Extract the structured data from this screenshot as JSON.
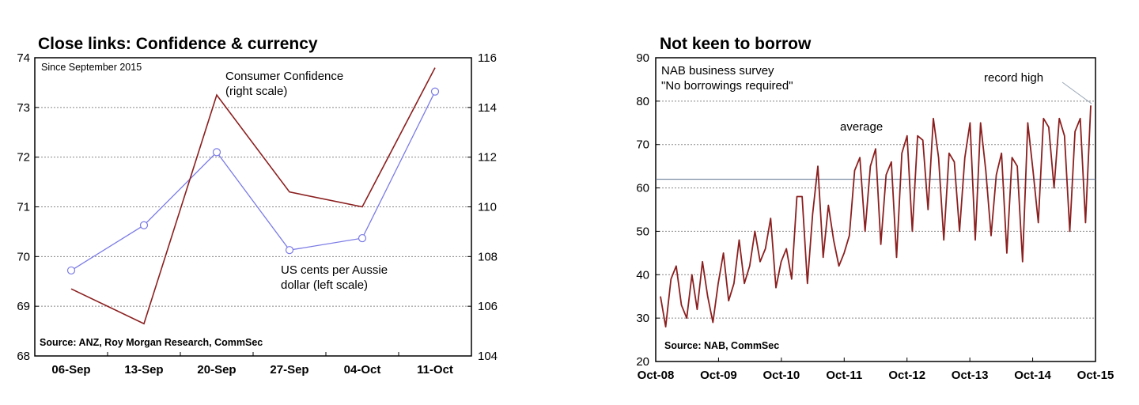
{
  "chart_data": [
    {
      "type": "line",
      "title": "Close links: Confidence & currency",
      "subtitle": "Since September 2015",
      "source": "Source: ANZ, Roy Morgan Research, CommSec",
      "categories": [
        "06-Sep",
        "13-Sep",
        "20-Sep",
        "27-Sep",
        "04-Oct",
        "11-Oct"
      ],
      "ylim_left": [
        68,
        74
      ],
      "yticks_left": [
        "68",
        "69",
        "70",
        "71",
        "72",
        "73",
        "74"
      ],
      "ylim_right": [
        104,
        116
      ],
      "yticks_right": [
        "104",
        "106",
        "108",
        "110",
        "112",
        "114",
        "116"
      ],
      "grid": true,
      "series": [
        {
          "name": "US cents per Aussie dollar (left scale)",
          "axis": "left",
          "color": "#7b7be6",
          "marker": "circle",
          "values": [
            69.72,
            70.63,
            72.1,
            70.13,
            70.37,
            73.32
          ]
        },
        {
          "name": "Consumer Confidence (right scale)",
          "axis": "right",
          "color": "#8b1f1f",
          "values": [
            106.7,
            105.3,
            114.5,
            110.6,
            110.0,
            115.6
          ]
        }
      ],
      "annotations": {
        "confidence": [
          "Consumer Confidence",
          "(right scale)"
        ],
        "currency": [
          "US cents per Aussie",
          "dollar (left scale)"
        ]
      }
    },
    {
      "type": "line",
      "title": "Not keen to borrow",
      "subtitle_lines": [
        "NAB business survey",
        "\"No borrowings required\""
      ],
      "source": "Source: NAB, CommSec",
      "xlabels": [
        "Oct-08",
        "Oct-09",
        "Oct-10",
        "Oct-11",
        "Oct-12",
        "Oct-13",
        "Oct-14",
        "Oct-15"
      ],
      "x_start": "Oct-08",
      "ylim": [
        20,
        90
      ],
      "yticks": [
        "20",
        "30",
        "40",
        "50",
        "60",
        "70",
        "80",
        "90"
      ],
      "grid": true,
      "average": 62,
      "average_label": "average",
      "record_label": "record high",
      "series": [
        {
          "name": "No borrowings required",
          "color": "#8b1f1f",
          "values": [
            35,
            28,
            39,
            42,
            33,
            30,
            40,
            32,
            43,
            35,
            29,
            38,
            45,
            34,
            38,
            48,
            38,
            42,
            50,
            43,
            46,
            53,
            37,
            43,
            46,
            39,
            58,
            58,
            38,
            54,
            65,
            44,
            56,
            48,
            42,
            45,
            49,
            64,
            67,
            50,
            65,
            69,
            47,
            63,
            66,
            44,
            68,
            72,
            50,
            72,
            71,
            55,
            76,
            67,
            48,
            68,
            66,
            50,
            67,
            75,
            48,
            75,
            64,
            49,
            63,
            68,
            45,
            67,
            65,
            43,
            75,
            64,
            52,
            76,
            74,
            60,
            76,
            72,
            50,
            73,
            76,
            52,
            79
          ]
        }
      ]
    }
  ]
}
